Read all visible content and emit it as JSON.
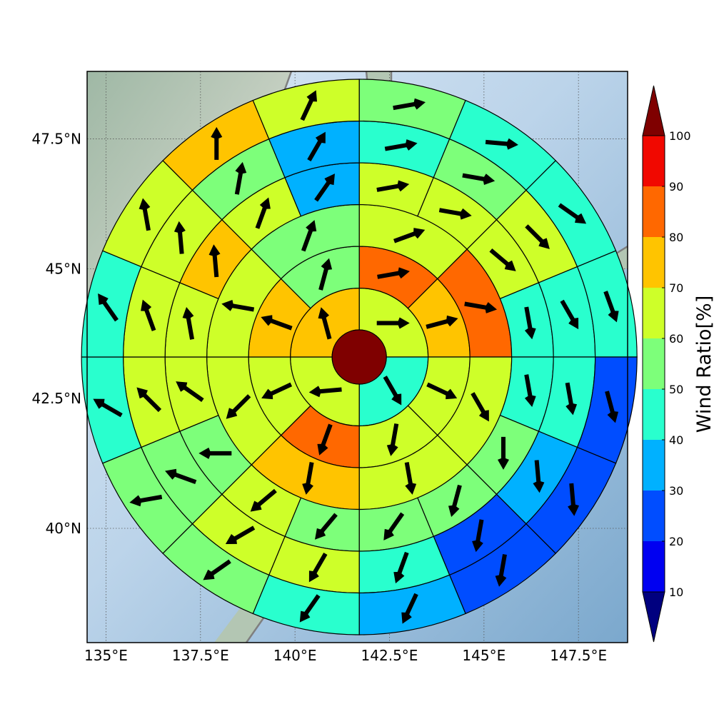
{
  "chart_data": {
    "type": "heatmap",
    "title": "",
    "x_axis": {
      "range": [
        134.5,
        148.8
      ],
      "ticks": [
        135.0,
        137.5,
        140.0,
        142.5,
        145.0,
        147.5
      ],
      "tick_labels": [
        "135°E",
        "137.5°E",
        "140°E",
        "142.5°E",
        "145°E",
        "147.5°E"
      ]
    },
    "y_axis": {
      "range": [
        37.8,
        48.8
      ],
      "ticks": [
        40.0,
        42.5,
        45.0,
        47.5
      ],
      "tick_labels": [
        "40°N",
        "42.5°N",
        "45°N",
        "47.5°N"
      ]
    },
    "grid": true,
    "colorbar": {
      "label": "Wind Ratio[%]",
      "ticks": [
        10,
        20,
        30,
        40,
        50,
        60,
        70,
        80,
        90,
        100
      ],
      "tick_labels": [
        "10",
        "20",
        "30",
        "40",
        "50",
        "60",
        "70",
        "80",
        "90",
        "100"
      ],
      "extend": "both",
      "bins": [
        {
          "range": [
            0,
            10
          ],
          "color": "#00007f"
        },
        {
          "range": [
            10,
            20
          ],
          "color": "#0000f1"
        },
        {
          "range": [
            20,
            30
          ],
          "color": "#004dff"
        },
        {
          "range": [
            30,
            40
          ],
          "color": "#00b1ff"
        },
        {
          "range": [
            40,
            50
          ],
          "color": "#29ffce"
        },
        {
          "range": [
            50,
            60
          ],
          "color": "#7dff7a"
        },
        {
          "range": [
            60,
            70
          ],
          "color": "#ceff29"
        },
        {
          "range": [
            70,
            80
          ],
          "color": "#ffc400"
        },
        {
          "range": [
            80,
            90
          ],
          "color": "#ff6800"
        },
        {
          "range": [
            90,
            100
          ],
          "color": "#f10800"
        },
        {
          "range": [
            100,
            110
          ],
          "color": "#7f0000"
        }
      ]
    },
    "polar_grid": {
      "center": [
        141.7,
        43.3
      ],
      "center_value": 100,
      "rings": [
        {
          "sectors": 4,
          "start_bearing": 0,
          "values": [
            65,
            45,
            65,
            75
          ],
          "wind_dir": [
            90,
            150,
            265,
            345
          ]
        },
        {
          "sectors": 8,
          "start_bearing": 0,
          "values": [
            85,
            75,
            65,
            65,
            85,
            65,
            75,
            55
          ],
          "wind_dir": [
            80,
            75,
            115,
            190,
            200,
            245,
            290,
            15
          ]
        },
        {
          "sectors": 8,
          "start_bearing": 0,
          "values": [
            65,
            85,
            65,
            65,
            75,
            65,
            65,
            55
          ],
          "wind_dir": [
            70,
            100,
            150,
            170,
            190,
            225,
            280,
            20
          ]
        },
        {
          "sectors": 16,
          "start_bearing": 0,
          "values": [
            65,
            65,
            65,
            45,
            45,
            55,
            55,
            55,
            55,
            65,
            55,
            65,
            65,
            75,
            65,
            35
          ],
          "wind_dir": [
            80,
            100,
            130,
            170,
            170,
            180,
            195,
            215,
            220,
            230,
            270,
            305,
            350,
            355,
            20,
            35
          ]
        },
        {
          "sectors": 16,
          "start_bearing": 0,
          "values": [
            45,
            55,
            65,
            45,
            45,
            35,
            25,
            45,
            65,
            65,
            55,
            65,
            65,
            65,
            55,
            35
          ],
          "wind_dir": [
            80,
            100,
            135,
            150,
            170,
            175,
            190,
            200,
            210,
            240,
            290,
            315,
            340,
            355,
            10,
            30
          ]
        },
        {
          "sectors": 16,
          "start_bearing": 0,
          "values": [
            55,
            45,
            45,
            45,
            25,
            25,
            25,
            35,
            45,
            55,
            55,
            45,
            45,
            65,
            75,
            65
          ],
          "wind_dir": [
            80,
            95,
            125,
            160,
            165,
            175,
            190,
            205,
            215,
            235,
            260,
            300,
            325,
            350,
            0,
            25
          ]
        }
      ]
    }
  }
}
